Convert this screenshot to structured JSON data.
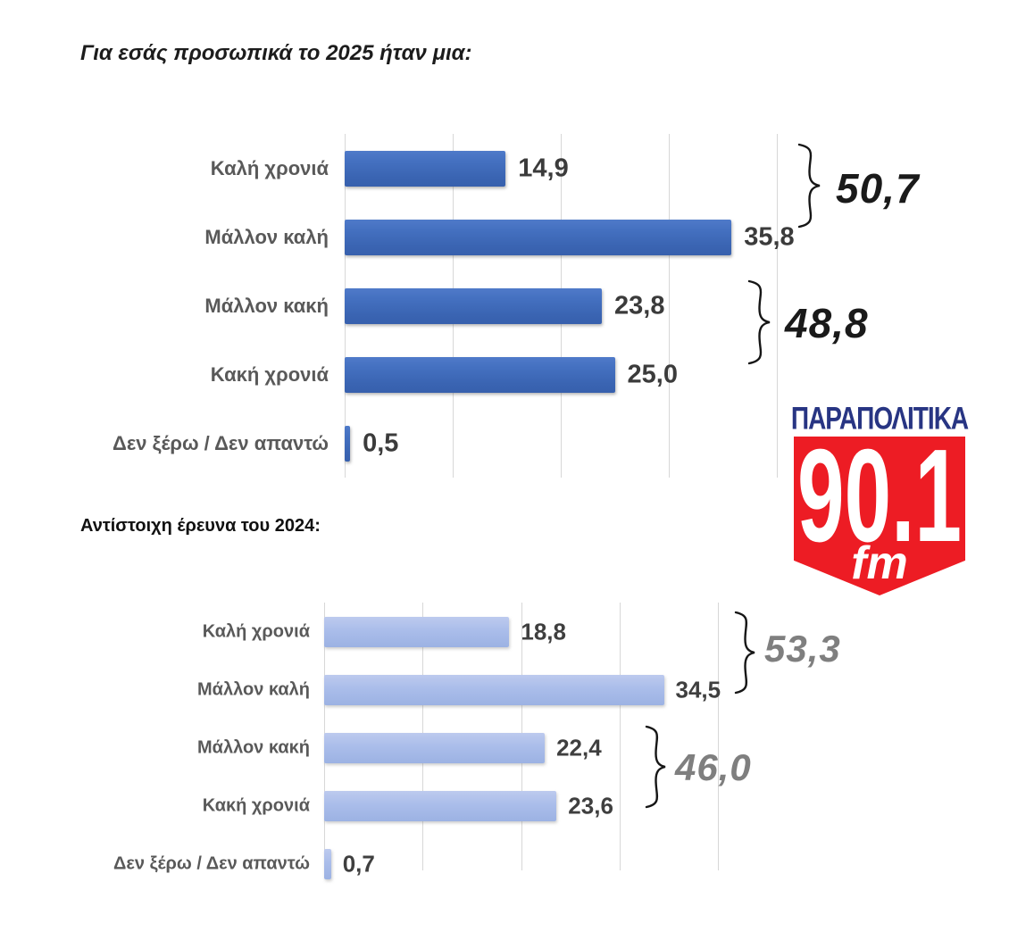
{
  "page": {
    "background": "#ffffff"
  },
  "title_2025": "Για εσάς προσωπικά το 2025 ήταν μια:",
  "subtitle_2024": "Αντίστοιχη έρευνα του 2024:",
  "logo": {
    "brand": "ΠΑΡΑΠΟΛΙΤΙΚΑ",
    "frequency": "90.1",
    "band": "fm",
    "brand_color": "#283583",
    "shield_color": "#ED1C24",
    "text_color": "#ffffff"
  },
  "chart_data": [
    {
      "type": "bar",
      "orientation": "horizontal",
      "title": "Για εσάς προσωπικά το 2025 ήταν μια:",
      "categories": [
        "Καλή χρονιά",
        "Μάλλον καλή",
        "Μάλλον κακή",
        "Κακή χρονιά",
        "Δεν ξέρω / Δεν απαντώ"
      ],
      "values": [
        14.9,
        35.8,
        23.8,
        25.0,
        0.5
      ],
      "value_labels": [
        "14,9",
        "35,8",
        "23,8",
        "25,0",
        "0,5"
      ],
      "xlim": [
        0,
        40
      ],
      "grid_step": 10,
      "grid": true,
      "legend": "none",
      "bar_color": "#3c66b5",
      "label_color": "#595959",
      "value_color": "#3b3b3b",
      "groups": [
        {
          "label": "50,7",
          "value": 50.7,
          "rows": [
            0,
            1
          ],
          "color": "#1a1a1a"
        },
        {
          "label": "48,8",
          "value": 48.8,
          "rows": [
            2,
            3
          ],
          "color": "#1a1a1a"
        }
      ]
    },
    {
      "type": "bar",
      "orientation": "horizontal",
      "title": "Αντίστοιχη έρευνα του 2024:",
      "categories": [
        "Καλή χρονιά",
        "Μάλλον καλή",
        "Μάλλον κακή",
        "Κακή χρονιά",
        "Δεν ξέρω / Δεν απαντώ"
      ],
      "values": [
        18.8,
        34.5,
        22.4,
        23.6,
        0.7
      ],
      "value_labels": [
        "18,8",
        "34,5",
        "22,4",
        "23,6",
        "0,7"
      ],
      "xlim": [
        0,
        40
      ],
      "grid_step": 10,
      "grid": true,
      "legend": "none",
      "bar_color": "#a9bce8",
      "label_color": "#595959",
      "value_color": "#3f3f3f",
      "groups": [
        {
          "label": "53,3",
          "value": 53.3,
          "rows": [
            0,
            1
          ],
          "color": "#7f7f7f"
        },
        {
          "label": "46,0",
          "value": 46.0,
          "rows": [
            2,
            3
          ],
          "color": "#7f7f7f"
        }
      ]
    }
  ]
}
